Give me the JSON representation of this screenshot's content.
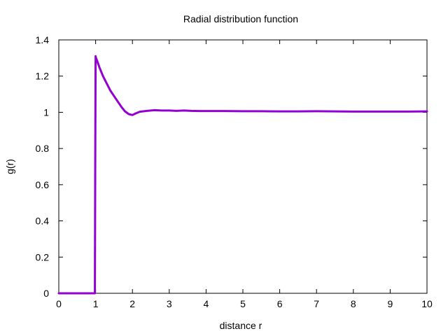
{
  "chart_data": {
    "type": "line",
    "title": "Radial distribution function",
    "xlabel": "distance r",
    "ylabel": "g(r)",
    "xlim": [
      0,
      10
    ],
    "ylim": [
      0,
      1.4
    ],
    "xticks": [
      0,
      1,
      2,
      3,
      4,
      5,
      6,
      7,
      8,
      9,
      10
    ],
    "xtick_labels": [
      "0",
      "1",
      "2",
      "3",
      "4",
      "5",
      "6",
      "7",
      "8",
      "9",
      "10"
    ],
    "yticks": [
      0,
      0.2,
      0.4,
      0.6,
      0.8,
      1,
      1.2,
      1.4
    ],
    "ytick_labels": [
      "0",
      "0.2",
      "0.4",
      "0.6",
      "0.8",
      "1",
      "1.2",
      "1.4"
    ],
    "grid": false,
    "legend": "none",
    "series": [
      {
        "color": "#9400d3",
        "x": [
          0,
          0.5,
          0.98,
          0.99,
          1.0,
          1.01,
          1.05,
          1.1,
          1.2,
          1.3,
          1.4,
          1.5,
          1.6,
          1.7,
          1.8,
          1.9,
          2.0,
          2.1,
          2.2,
          2.4,
          2.6,
          2.8,
          3.0,
          3.2,
          3.4,
          3.6,
          3.8,
          4.0,
          4.5,
          5.0,
          5.5,
          6.0,
          6.5,
          7.0,
          7.5,
          8.0,
          8.5,
          9.0,
          9.5,
          10.0
        ],
        "y": [
          0,
          0,
          0,
          0.72,
          1.31,
          1.3,
          1.28,
          1.25,
          1.2,
          1.16,
          1.12,
          1.09,
          1.06,
          1.03,
          1.005,
          0.99,
          0.985,
          0.995,
          1.003,
          1.008,
          1.012,
          1.01,
          1.01,
          1.008,
          1.01,
          1.008,
          1.007,
          1.007,
          1.007,
          1.006,
          1.006,
          1.005,
          1.005,
          1.006,
          1.005,
          1.004,
          1.004,
          1.004,
          1.004,
          1.005
        ]
      }
    ]
  }
}
